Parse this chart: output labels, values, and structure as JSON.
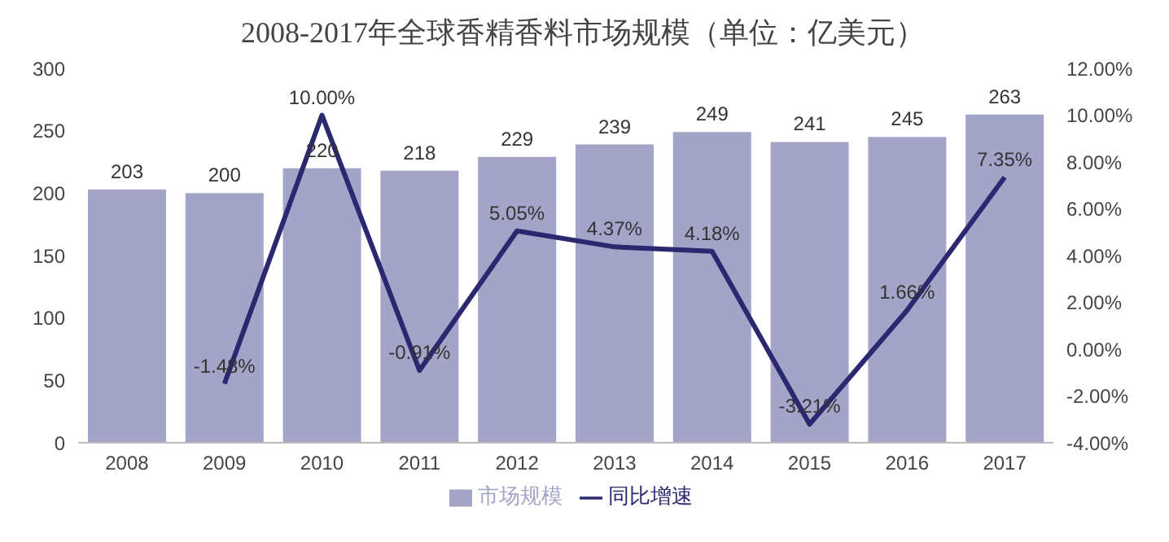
{
  "chart_data": {
    "type": "bar",
    "title": "2008-2017年全球香精香料市场规模（单位：亿美元）",
    "categories": [
      "2008",
      "2009",
      "2010",
      "2011",
      "2012",
      "2013",
      "2014",
      "2015",
      "2016",
      "2017"
    ],
    "series": [
      {
        "name": "市场规模",
        "color": "#a4a4c8",
        "values": [
          203,
          200,
          220,
          218,
          229,
          239,
          249,
          241,
          245,
          263
        ],
        "value_labels": [
          "203",
          "200",
          "220",
          "218",
          "229",
          "239",
          "249",
          "241",
          "245",
          "263"
        ]
      },
      {
        "name": "同比增速",
        "type": "line",
        "axis": "y2",
        "color": "#2b2870",
        "values": [
          null,
          -1.48,
          10.0,
          -0.91,
          5.05,
          4.37,
          4.18,
          -3.21,
          1.66,
          7.35
        ],
        "value_labels": [
          null,
          "-1.48%",
          "10.00%",
          "-0.91%",
          "5.05%",
          "4.37%",
          "4.18%",
          "-3.21%",
          "1.66%",
          "7.35%"
        ]
      }
    ],
    "ylim": [
      0,
      300
    ],
    "yticks": [
      0,
      50,
      100,
      150,
      200,
      250,
      300
    ],
    "y2lim": [
      -4,
      12
    ],
    "y2ticks": [
      {
        "value": -4,
        "label": "-4.00%"
      },
      {
        "value": -2,
        "label": "-2.00%"
      },
      {
        "value": 0,
        "label": "0.00%"
      },
      {
        "value": 2,
        "label": "2.00%"
      },
      {
        "value": 4,
        "label": "4.00%"
      },
      {
        "value": 6,
        "label": "6.00%"
      },
      {
        "value": 8,
        "label": "8.00%"
      },
      {
        "value": 10,
        "label": "10.00%"
      },
      {
        "value": 12,
        "label": "12.00%"
      }
    ],
    "grid": false,
    "legend": "bottom",
    "marker": "none",
    "line_style": "solid"
  }
}
